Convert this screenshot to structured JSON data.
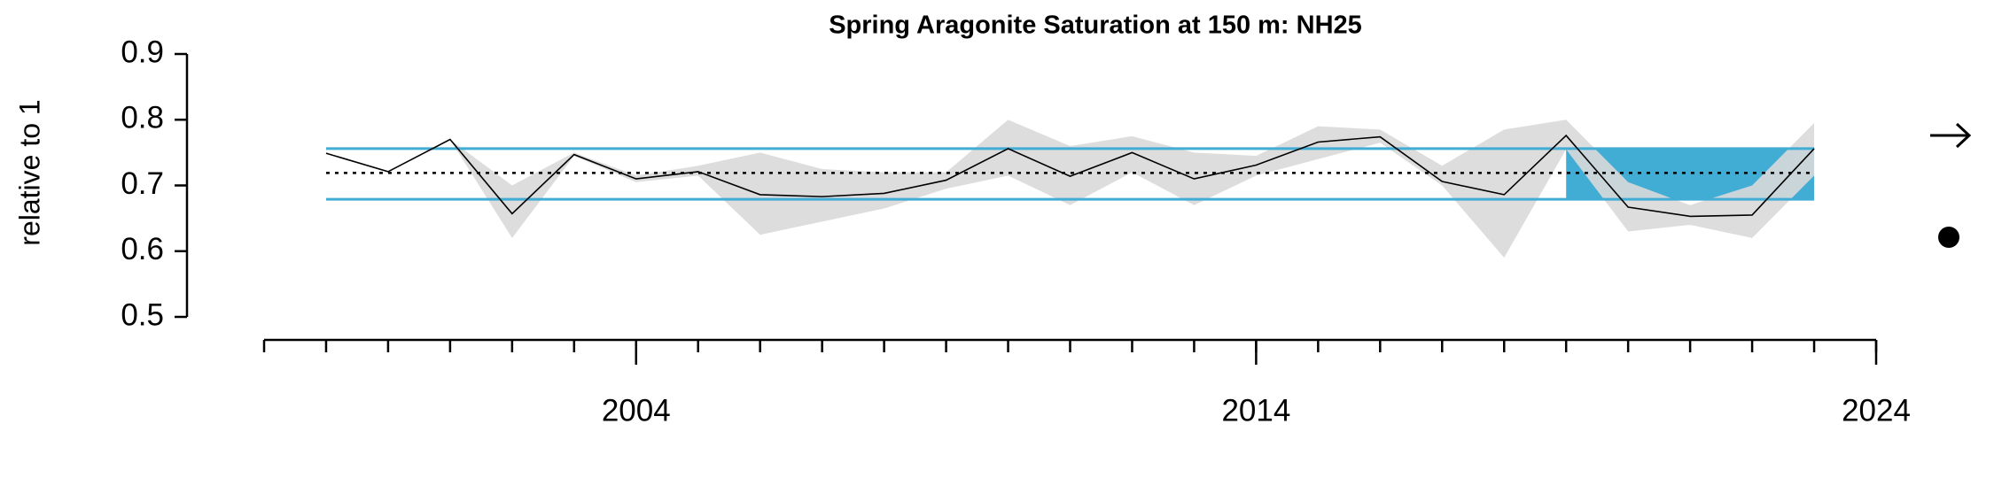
{
  "chart_data": {
    "type": "line",
    "title": "Spring Aragonite Saturation at 150 m: NH25",
    "y_label": "relative to 1",
    "x": [
      1999,
      2000,
      2001,
      2002,
      2003,
      2004,
      2005,
      2006,
      2007,
      2008,
      2009,
      2010,
      2011,
      2012,
      2013,
      2014,
      2015,
      2016,
      2017,
      2018,
      2019,
      2020,
      2021,
      2022,
      2023
    ],
    "values": [
      0.749,
      0.721,
      0.77,
      0.657,
      0.747,
      0.71,
      0.721,
      0.686,
      0.683,
      0.688,
      0.708,
      0.756,
      0.714,
      0.75,
      0.71,
      0.731,
      0.766,
      0.774,
      0.706,
      0.686,
      0.776,
      0.667,
      0.653,
      0.655,
      0.756
    ],
    "upper": [
      null,
      null,
      0.77,
      0.7,
      0.75,
      0.715,
      0.73,
      0.75,
      0.725,
      0.72,
      0.72,
      0.8,
      0.76,
      0.775,
      0.75,
      0.745,
      0.79,
      0.785,
      0.73,
      0.785,
      0.8,
      0.705,
      0.67,
      0.7,
      0.795
    ],
    "lower": [
      null,
      null,
      0.77,
      0.62,
      0.745,
      0.705,
      0.715,
      0.625,
      0.645,
      0.665,
      0.695,
      0.715,
      0.67,
      0.72,
      0.67,
      0.715,
      0.74,
      0.765,
      0.7,
      0.59,
      0.755,
      0.63,
      0.64,
      0.62,
      0.715
    ],
    "line_color": "#000000",
    "band_color": "#d9d9d9",
    "mean": 0.719,
    "sd_upper": 0.756,
    "sd_lower": 0.679,
    "sd_color": "#41add4",
    "highlight_x": [
      2019,
      2023
    ],
    "xlim": [
      1998,
      2024
    ],
    "xticks": [
      2004,
      2014,
      2024
    ],
    "x_minor_ticks": [
      1998,
      1999,
      2000,
      2001,
      2002,
      2003,
      2004,
      2005,
      2006,
      2007,
      2008,
      2009,
      2010,
      2011,
      2012,
      2013,
      2014,
      2015,
      2016,
      2017,
      2018,
      2019,
      2020,
      2021,
      2022,
      2023,
      2024
    ],
    "ylim": [
      0.5,
      0.9
    ],
    "yticks": [
      0.5,
      0.6,
      0.7,
      0.8,
      0.9
    ]
  }
}
